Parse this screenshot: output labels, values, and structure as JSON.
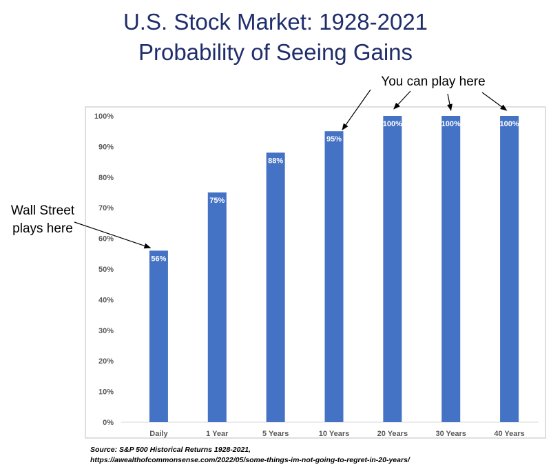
{
  "title_lines": [
    "U.S. Stock Market: 1928-2021",
    "Probability of Seeing Gains"
  ],
  "chart_data": {
    "type": "bar",
    "title": "U.S. Stock Market: 1928-2021 Probability of Seeing Gains",
    "categories": [
      "Daily",
      "1 Year",
      "5 Years",
      "10 Years",
      "20 Years",
      "30 Years",
      "40 Years"
    ],
    "values": [
      56,
      75,
      88,
      95,
      100,
      100,
      100
    ],
    "data_labels": [
      "56%",
      "75%",
      "88%",
      "95%",
      "100%",
      "100%",
      "100%"
    ],
    "ylim": [
      0,
      100
    ],
    "yticks": [
      0,
      10,
      20,
      30,
      40,
      50,
      60,
      70,
      80,
      90,
      100
    ],
    "ytick_labels": [
      "0%",
      "10%",
      "20%",
      "30%",
      "40%",
      "50%",
      "60%",
      "70%",
      "80%",
      "90%",
      "100%"
    ],
    "xlabel": "",
    "ylabel": "",
    "grid": false,
    "legend": "none",
    "bar_color": "#4472c4",
    "annotations": {
      "wall_street": {
        "lines": [
          "Wall Street",
          "plays here"
        ],
        "points_to": [
          "Daily"
        ]
      },
      "you_can_play": {
        "text": "You can play here",
        "points_to": [
          "10 Years",
          "20 Years",
          "30 Years",
          "40 Years"
        ]
      }
    }
  },
  "source": {
    "line1": "Source: S&P 500 Historical Returns 1928-2021,",
    "line2": "https://awealthofcommonsense.com/2022/05/some-things-im-not-going-to-regret-in-20-years/"
  }
}
